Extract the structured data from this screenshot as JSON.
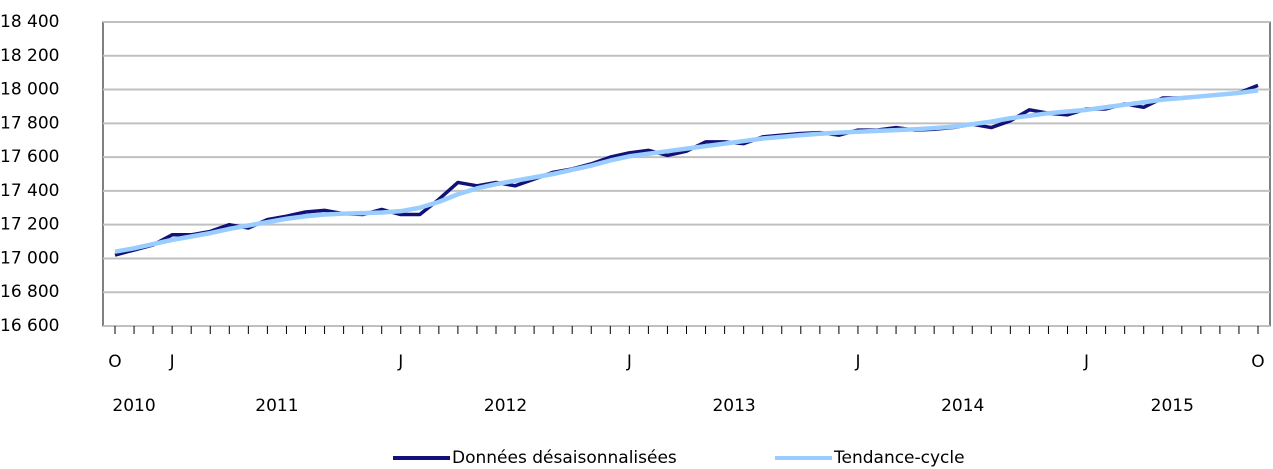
{
  "chart_data": {
    "type": "line",
    "categories": [
      "O",
      null,
      null,
      "J",
      null,
      null,
      null,
      null,
      null,
      null,
      null,
      null,
      null,
      null,
      null,
      "J",
      null,
      null,
      null,
      null,
      null,
      null,
      null,
      null,
      null,
      null,
      null,
      "J",
      null,
      null,
      null,
      null,
      null,
      null,
      null,
      null,
      null,
      null,
      null,
      "J",
      null,
      null,
      null,
      null,
      null,
      null,
      null,
      null,
      null,
      null,
      null,
      "J",
      null,
      null,
      null,
      null,
      null,
      null,
      null,
      null,
      "O"
    ],
    "years": [
      "2010",
      "2011",
      "2012",
      "2013",
      "2014",
      "2015"
    ],
    "series": [
      {
        "name": "Données désaisonnalisées",
        "color": "#111177",
        "values": [
          17020,
          17050,
          17080,
          17140,
          17140,
          17160,
          17200,
          17180,
          17230,
          17250,
          17275,
          17285,
          17265,
          17260,
          17290,
          17260,
          17260,
          17350,
          17450,
          17430,
          17450,
          17430,
          17470,
          17510,
          17530,
          17560,
          17600,
          17625,
          17640,
          17610,
          17635,
          17690,
          17690,
          17680,
          17720,
          17730,
          17740,
          17745,
          17730,
          17760,
          17760,
          17775,
          17760,
          17765,
          17775,
          17795,
          17775,
          17815,
          17880,
          17860,
          17850,
          17885,
          17885,
          17915,
          17895,
          17950,
          17950,
          17960,
          17970,
          17980,
          18025
        ]
      },
      {
        "name": "Tendance-cycle",
        "color": "#99ccff",
        "values": [
          17040,
          17060,
          17085,
          17110,
          17130,
          17150,
          17175,
          17195,
          17215,
          17235,
          17250,
          17260,
          17265,
          17268,
          17272,
          17280,
          17300,
          17335,
          17380,
          17415,
          17440,
          17460,
          17480,
          17500,
          17525,
          17550,
          17580,
          17605,
          17620,
          17635,
          17650,
          17665,
          17680,
          17695,
          17710,
          17720,
          17730,
          17738,
          17745,
          17750,
          17755,
          17760,
          17765,
          17772,
          17780,
          17795,
          17810,
          17830,
          17845,
          17860,
          17870,
          17880,
          17895,
          17910,
          17925,
          17940,
          17950,
          17960,
          17970,
          17980,
          17995
        ]
      }
    ],
    "ylim": [
      16600,
      18400
    ],
    "yticks": [
      {
        "value": 16600,
        "label": "16 600"
      },
      {
        "value": 16800,
        "label": "16 800"
      },
      {
        "value": 17000,
        "label": "17 000"
      },
      {
        "value": 17200,
        "label": "17 200"
      },
      {
        "value": 17400,
        "label": "17 400"
      },
      {
        "value": 17600,
        "label": "17 600"
      },
      {
        "value": 17800,
        "label": "17 800"
      },
      {
        "value": 18000,
        "label": "18 000"
      },
      {
        "value": 18200,
        "label": "18 200"
      },
      {
        "value": 18400,
        "label": "18 400"
      }
    ],
    "grid": true
  }
}
